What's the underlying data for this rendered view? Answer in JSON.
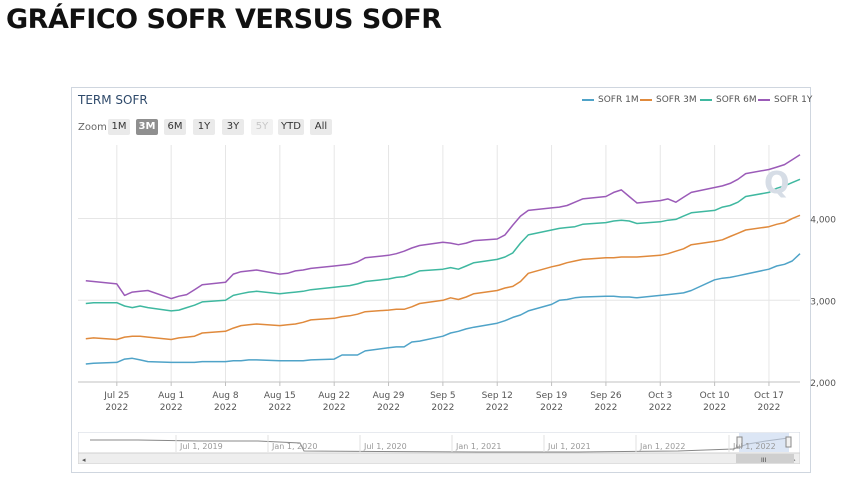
{
  "page": {
    "title": "GRÁFICO SOFR VERSUS SOFR"
  },
  "chart": {
    "title": "TERM SOFR",
    "zoom_label": "Zoom",
    "zoom_buttons": [
      {
        "label": "1M",
        "state": "normal"
      },
      {
        "label": "3M",
        "state": "active"
      },
      {
        "label": "6M",
        "state": "normal"
      },
      {
        "label": "1Y",
        "state": "normal"
      },
      {
        "label": "3Y",
        "state": "normal"
      },
      {
        "label": "5Y",
        "state": "disabled"
      },
      {
        "label": "YTD",
        "state": "normal"
      },
      {
        "label": "All",
        "state": "normal"
      }
    ],
    "navigator_labels": [
      "Jul 1, 2019",
      "Jan 1, 2020",
      "Jul 1, 2020",
      "Jan 1, 2021",
      "Jul 1, 2021",
      "Jan 1, 2022",
      "Jul 1, 2022"
    ],
    "scrollbar_grip": "III"
  },
  "chart_data": {
    "type": "line",
    "title": "TERM SOFR",
    "legend_position": "top-right",
    "grid": true,
    "ylim": [
      2.0,
      4.9
    ],
    "y_ticks": [
      "2,000",
      "3,000",
      "4,000"
    ],
    "y_tick_values": [
      2.0,
      3.0,
      4.0
    ],
    "x_ticks": [
      [
        "Jul 25",
        "2022"
      ],
      [
        "Aug 1",
        "2022"
      ],
      [
        "Aug 8",
        "2022"
      ],
      [
        "Aug 15",
        "2022"
      ],
      [
        "Aug 22",
        "2022"
      ],
      [
        "Aug 29",
        "2022"
      ],
      [
        "Sep 5",
        "2022"
      ],
      [
        "Sep 12",
        "2022"
      ],
      [
        "Sep 19",
        "2022"
      ],
      [
        "Sep 26",
        "2022"
      ],
      [
        "Oct 3",
        "2022"
      ],
      [
        "Oct 10",
        "2022"
      ],
      [
        "Oct 17",
        "2022"
      ]
    ],
    "x": [
      "2022-07-21",
      "2022-07-22",
      "2022-07-25",
      "2022-07-26",
      "2022-07-27",
      "2022-07-28",
      "2022-07-29",
      "2022-08-01",
      "2022-08-02",
      "2022-08-03",
      "2022-08-04",
      "2022-08-05",
      "2022-08-08",
      "2022-08-09",
      "2022-08-10",
      "2022-08-11",
      "2022-08-12",
      "2022-08-15",
      "2022-08-16",
      "2022-08-17",
      "2022-08-18",
      "2022-08-19",
      "2022-08-22",
      "2022-08-23",
      "2022-08-24",
      "2022-08-25",
      "2022-08-26",
      "2022-08-29",
      "2022-08-30",
      "2022-08-31",
      "2022-09-01",
      "2022-09-02",
      "2022-09-05",
      "2022-09-06",
      "2022-09-07",
      "2022-09-08",
      "2022-09-09",
      "2022-09-12",
      "2022-09-13",
      "2022-09-14",
      "2022-09-15",
      "2022-09-16",
      "2022-09-19",
      "2022-09-20",
      "2022-09-21",
      "2022-09-22",
      "2022-09-23",
      "2022-09-26",
      "2022-09-27",
      "2022-09-28",
      "2022-09-29",
      "2022-09-30",
      "2022-10-03",
      "2022-10-04",
      "2022-10-05",
      "2022-10-06",
      "2022-10-07",
      "2022-10-10",
      "2022-10-11",
      "2022-10-12",
      "2022-10-13",
      "2022-10-14",
      "2022-10-17",
      "2022-10-18",
      "2022-10-19",
      "2022-10-20",
      "2022-10-21"
    ],
    "series": [
      {
        "name": "SOFR 1M",
        "color": "#4fa3c8",
        "values": [
          2.22,
          2.23,
          2.24,
          2.28,
          2.29,
          2.27,
          2.25,
          2.24,
          2.24,
          2.24,
          2.24,
          2.25,
          2.25,
          2.26,
          2.26,
          2.27,
          2.27,
          2.26,
          2.26,
          2.26,
          2.26,
          2.27,
          2.28,
          2.33,
          2.33,
          2.33,
          2.38,
          2.42,
          2.43,
          2.43,
          2.49,
          2.5,
          2.56,
          2.6,
          2.62,
          2.65,
          2.67,
          2.72,
          2.75,
          2.79,
          2.82,
          2.87,
          2.95,
          3.0,
          3.01,
          3.03,
          3.04,
          3.05,
          3.05,
          3.04,
          3.04,
          3.03,
          3.06,
          3.07,
          3.08,
          3.09,
          3.12,
          3.25,
          3.27,
          3.28,
          3.3,
          3.32,
          3.38,
          3.42,
          3.44,
          3.48,
          3.57
        ]
      },
      {
        "name": "SOFR 3M",
        "color": "#e08a3c",
        "values": [
          2.53,
          2.54,
          2.52,
          2.55,
          2.56,
          2.56,
          2.55,
          2.52,
          2.54,
          2.55,
          2.56,
          2.6,
          2.62,
          2.66,
          2.69,
          2.7,
          2.71,
          2.69,
          2.7,
          2.71,
          2.73,
          2.76,
          2.78,
          2.8,
          2.81,
          2.83,
          2.86,
          2.88,
          2.89,
          2.89,
          2.92,
          2.96,
          3.0,
          3.03,
          3.01,
          3.04,
          3.08,
          3.12,
          3.15,
          3.17,
          3.23,
          3.33,
          3.41,
          3.43,
          3.46,
          3.48,
          3.5,
          3.52,
          3.52,
          3.53,
          3.53,
          3.53,
          3.55,
          3.57,
          3.6,
          3.63,
          3.68,
          3.72,
          3.74,
          3.78,
          3.82,
          3.86,
          3.9,
          3.93,
          3.95,
          4.0,
          4.04
        ]
      },
      {
        "name": "SOFR 6M",
        "color": "#3fb8a0",
        "values": [
          2.96,
          2.97,
          2.97,
          2.93,
          2.91,
          2.93,
          2.91,
          2.87,
          2.88,
          2.91,
          2.94,
          2.98,
          3.0,
          3.06,
          3.08,
          3.1,
          3.11,
          3.08,
          3.09,
          3.1,
          3.11,
          3.13,
          3.16,
          3.17,
          3.18,
          3.2,
          3.23,
          3.26,
          3.28,
          3.29,
          3.32,
          3.36,
          3.38,
          3.4,
          3.38,
          3.42,
          3.46,
          3.5,
          3.53,
          3.58,
          3.7,
          3.8,
          3.86,
          3.88,
          3.89,
          3.9,
          3.93,
          3.95,
          3.97,
          3.98,
          3.97,
          3.94,
          3.96,
          3.98,
          3.99,
          4.03,
          4.07,
          4.1,
          4.14,
          4.16,
          4.2,
          4.27,
          4.32,
          4.37,
          4.4,
          4.44,
          4.48
        ]
      },
      {
        "name": "SOFR 1Y",
        "color": "#9b5bb8",
        "values": [
          3.24,
          3.23,
          3.2,
          3.06,
          3.1,
          3.11,
          3.12,
          3.02,
          3.05,
          3.07,
          3.13,
          3.19,
          3.22,
          3.32,
          3.35,
          3.36,
          3.37,
          3.32,
          3.33,
          3.36,
          3.37,
          3.39,
          3.42,
          3.43,
          3.44,
          3.47,
          3.52,
          3.55,
          3.57,
          3.6,
          3.64,
          3.67,
          3.71,
          3.7,
          3.68,
          3.7,
          3.73,
          3.75,
          3.8,
          3.92,
          4.03,
          4.1,
          4.13,
          4.14,
          4.16,
          4.2,
          4.24,
          4.27,
          4.32,
          4.35,
          4.27,
          4.19,
          4.22,
          4.24,
          4.2,
          4.26,
          4.32,
          4.38,
          4.4,
          4.43,
          4.48,
          4.55,
          4.6,
          4.63,
          4.66,
          4.72,
          4.78
        ]
      }
    ]
  }
}
